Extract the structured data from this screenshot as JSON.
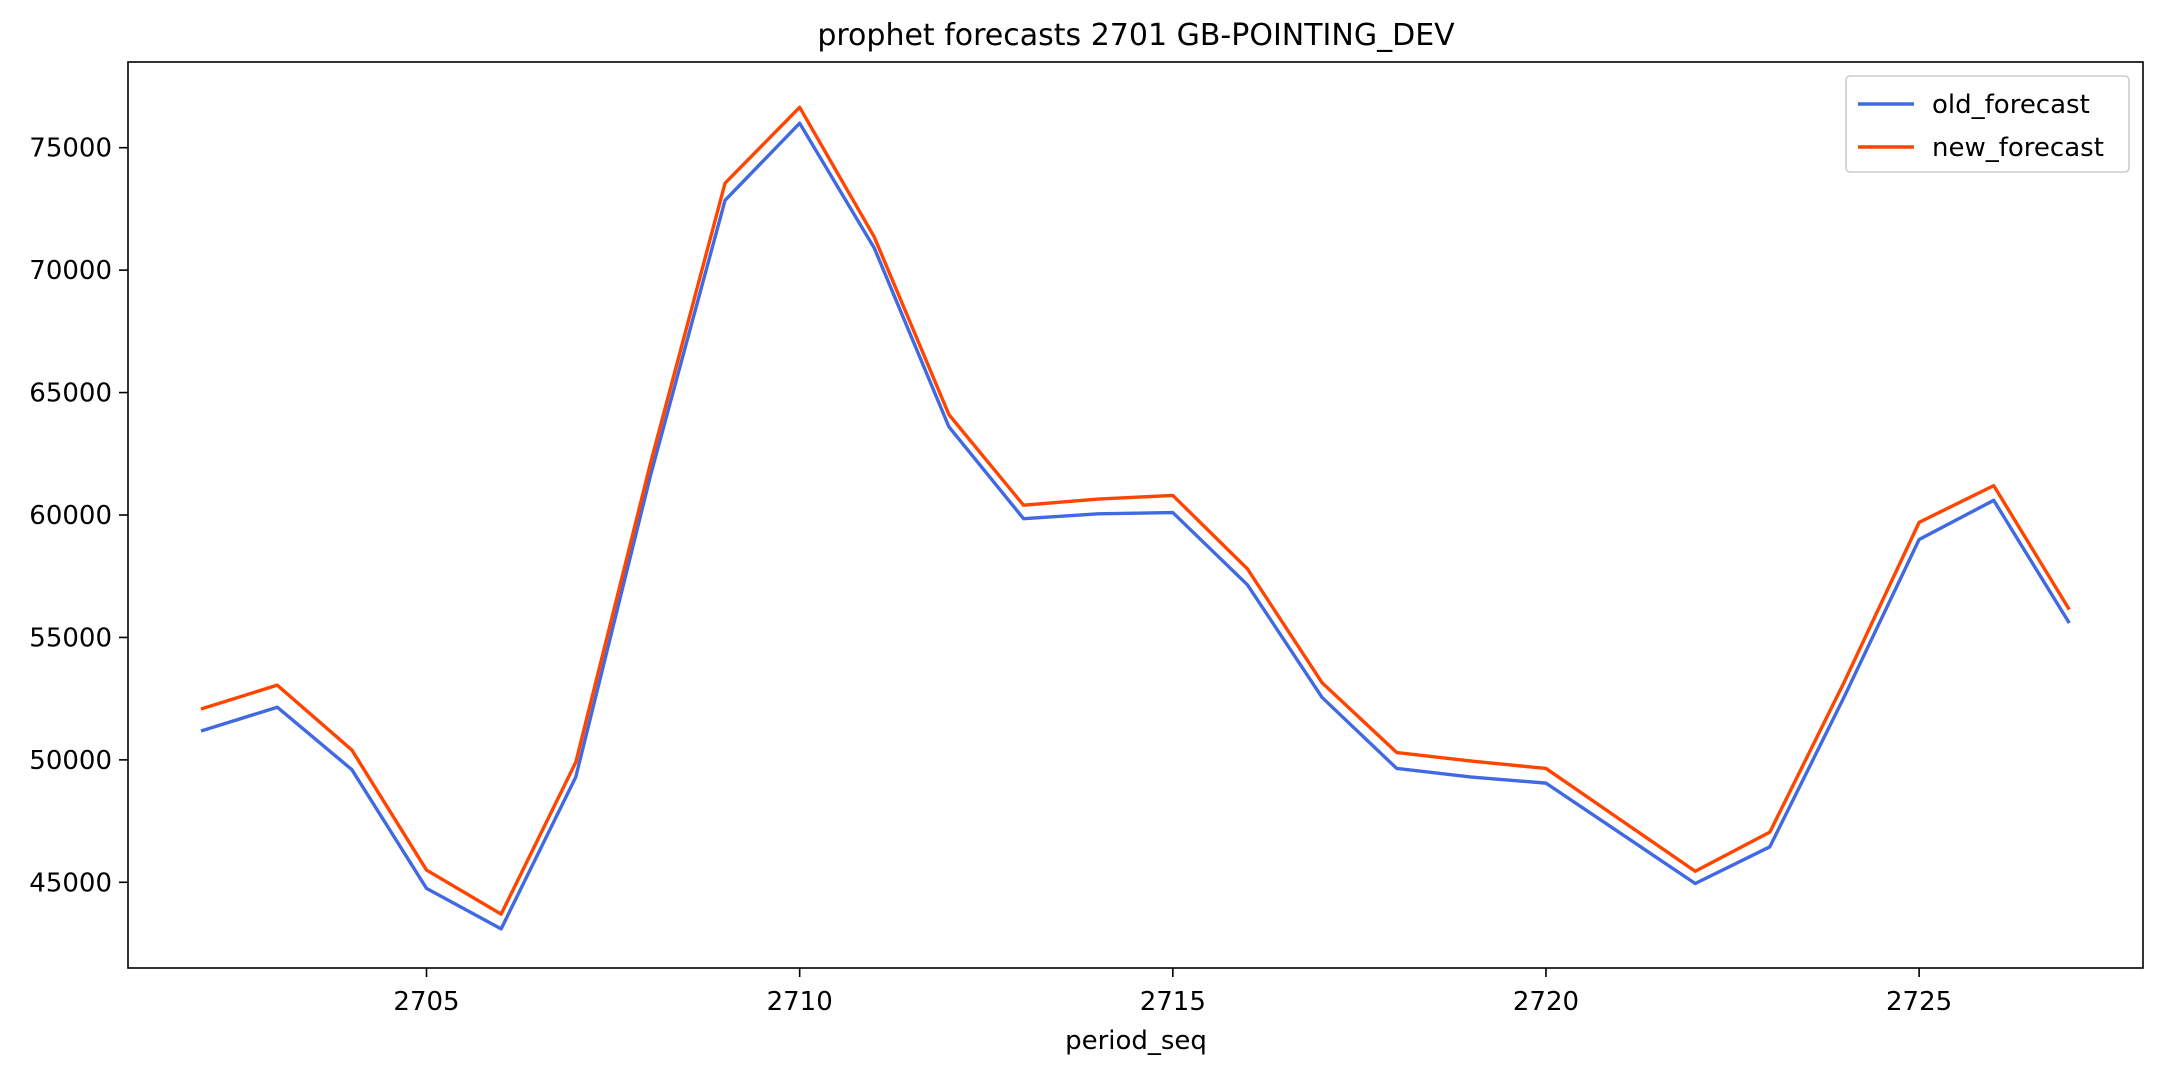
{
  "chart_data": {
    "type": "line",
    "title": "prophet forecasts 2701 GB-POINTING_DEV",
    "xlabel": "period_seq",
    "ylabel": "",
    "xlim": [
      2701,
      2728
    ],
    "ylim": [
      41500,
      78500
    ],
    "xticks": [
      2705,
      2710,
      2715,
      2720,
      2725
    ],
    "yticks": [
      45000,
      50000,
      55000,
      60000,
      65000,
      70000,
      75000
    ],
    "grid": false,
    "legend_position": "top-right",
    "x": [
      2702,
      2703,
      2704,
      2705,
      2706,
      2707,
      2708,
      2709,
      2710,
      2711,
      2712,
      2713,
      2714,
      2715,
      2716,
      2717,
      2718,
      2719,
      2720,
      2721,
      2722,
      2723,
      2724,
      2725,
      2726,
      2727
    ],
    "series": [
      {
        "name": "old_forecast",
        "color": "#4169e1",
        "values": [
          51200,
          52150,
          49600,
          44750,
          43100,
          49300,
          61600,
          72850,
          76000,
          70900,
          63600,
          59850,
          60050,
          60100,
          57150,
          52550,
          49650,
          49300,
          49050,
          47000,
          44950,
          46450,
          52600,
          59000,
          60600,
          55650
        ]
      },
      {
        "name": "new_forecast",
        "color": "#ff4500",
        "values": [
          52100,
          53050,
          50400,
          45500,
          43700,
          49900,
          62100,
          73550,
          76650,
          71350,
          64100,
          60400,
          60650,
          60800,
          57800,
          53150,
          50300,
          49950,
          49650,
          47550,
          45450,
          47050,
          53200,
          59700,
          61200,
          56200
        ]
      }
    ]
  }
}
